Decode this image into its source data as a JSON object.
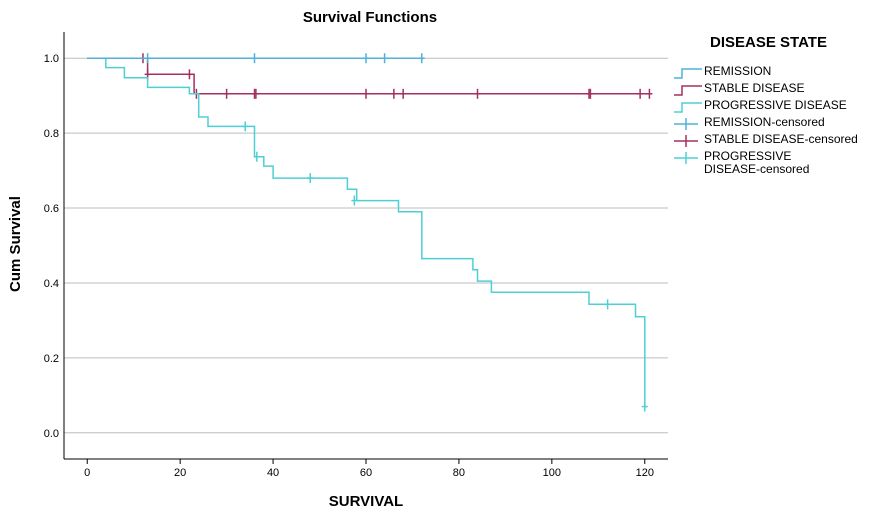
{
  "chart_data": {
    "type": "line",
    "subtype": "kaplan-meier step survival curve",
    "title": "Survival Functions",
    "xlabel": "SURVIVAL",
    "ylabel": "Cum Survival",
    "xlim": [
      -5,
      125
    ],
    "ylim": [
      -0.07,
      1.07
    ],
    "x_ticks": [
      0,
      20,
      40,
      60,
      80,
      100,
      120
    ],
    "y_ticks": [
      0.0,
      0.2,
      0.4,
      0.6,
      0.8,
      1.0
    ],
    "x_tick_labels": [
      "0",
      "20",
      "40",
      "60",
      "80",
      "100",
      "120"
    ],
    "y_tick_labels": [
      "0.0",
      "0.2",
      "0.4",
      "0.6",
      "0.8",
      "1.0"
    ],
    "gridlines": "horizontal",
    "legend_title": "DISEASE STATE",
    "legend_position": "right",
    "series": [
      {
        "name": "REMISSION",
        "color": "#4fb0dc",
        "steps": [
          [
            0,
            1.0
          ],
          [
            72,
            1.0
          ]
        ],
        "censored_name": "REMISSION-censored",
        "censored": [
          [
            13,
            1.0
          ],
          [
            36,
            1.0
          ],
          [
            60,
            1.0
          ],
          [
            64,
            1.0
          ],
          [
            72,
            1.0
          ]
        ]
      },
      {
        "name": "STABLE DISEASE",
        "color": "#a33060",
        "steps": [
          [
            0,
            1.0
          ],
          [
            13,
            1.0
          ],
          [
            13,
            0.957
          ],
          [
            23,
            0.957
          ],
          [
            23,
            0.905
          ],
          [
            121,
            0.905
          ]
        ],
        "censored_name": "STABLE DISEASE-censored",
        "censored": [
          [
            12,
            1.0
          ],
          [
            13,
            0.957
          ],
          [
            22,
            0.957
          ],
          [
            23.5,
            0.905
          ],
          [
            30,
            0.905
          ],
          [
            36,
            0.905
          ],
          [
            36.3,
            0.905
          ],
          [
            60,
            0.905
          ],
          [
            66,
            0.905
          ],
          [
            68,
            0.905
          ],
          [
            84,
            0.905
          ],
          [
            108,
            0.905
          ],
          [
            108.3,
            0.905
          ],
          [
            119,
            0.905
          ],
          [
            121,
            0.905
          ]
        ]
      },
      {
        "name": "PROGRESSIVE DISEASE",
        "color": "#4ecfd5",
        "steps": [
          [
            0,
            1.0
          ],
          [
            4,
            1.0
          ],
          [
            4,
            0.975
          ],
          [
            8,
            0.975
          ],
          [
            8,
            0.948
          ],
          [
            13,
            0.948
          ],
          [
            13,
            0.922
          ],
          [
            22,
            0.922
          ],
          [
            22,
            0.905
          ],
          [
            24,
            0.905
          ],
          [
            24,
            0.843
          ],
          [
            26,
            0.843
          ],
          [
            26,
            0.818
          ],
          [
            36,
            0.818
          ],
          [
            36,
            0.737
          ],
          [
            38,
            0.737
          ],
          [
            38,
            0.712
          ],
          [
            40,
            0.712
          ],
          [
            40,
            0.68
          ],
          [
            56,
            0.68
          ],
          [
            56,
            0.65
          ],
          [
            58,
            0.65
          ],
          [
            58,
            0.62
          ],
          [
            67,
            0.62
          ],
          [
            67,
            0.59
          ],
          [
            72,
            0.59
          ],
          [
            72,
            0.465
          ],
          [
            83,
            0.465
          ],
          [
            83,
            0.435
          ],
          [
            84,
            0.435
          ],
          [
            84,
            0.405
          ],
          [
            87,
            0.405
          ],
          [
            87,
            0.375
          ],
          [
            108,
            0.375
          ],
          [
            108,
            0.343
          ],
          [
            118,
            0.343
          ],
          [
            118,
            0.31
          ],
          [
            120,
            0.31
          ],
          [
            120,
            0.07
          ]
        ],
        "censored_name": "PROGRESSIVE DISEASE-censored",
        "censored": [
          [
            34,
            0.818
          ],
          [
            36.5,
            0.737
          ],
          [
            48,
            0.68
          ],
          [
            57.5,
            0.62
          ],
          [
            112,
            0.343
          ],
          [
            120,
            0.07
          ]
        ]
      }
    ]
  },
  "legend": {
    "title": "DISEASE STATE",
    "items": [
      {
        "label": "REMISSION",
        "color": "#4fb0dc",
        "marker": "line"
      },
      {
        "label": "STABLE DISEASE",
        "color": "#a33060",
        "marker": "line"
      },
      {
        "label": "PROGRESSIVE DISEASE",
        "color": "#4ecfd5",
        "marker": "line"
      },
      {
        "label": "REMISSION-censored",
        "color": "#4fb0dc",
        "marker": "cross"
      },
      {
        "label": "STABLE DISEASE-censored",
        "color": "#a33060",
        "marker": "cross"
      },
      {
        "label": "PROGRESSIVE DISEASE-censored",
        "color": "#4ecfd5",
        "marker": "cross"
      }
    ]
  },
  "colors": {
    "grid": "#bdbdbd",
    "axis": "#000000",
    "background": "#ffffff"
  }
}
